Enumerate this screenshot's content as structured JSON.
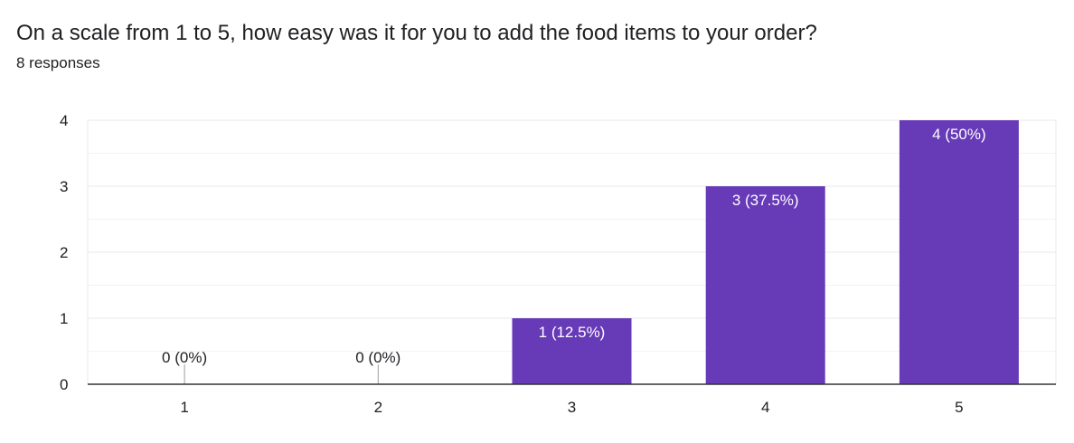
{
  "question": {
    "title": "On a scale from 1 to 5, how easy was it for you to add the food items to your order?",
    "response_count": "8 responses"
  },
  "colors": {
    "bar": "#673ab7",
    "grid": "#e8e8e8",
    "grid_minor": "#f3f3f3",
    "axis": "#333333",
    "text": "#202124"
  },
  "chart_data": {
    "type": "bar",
    "title": "",
    "xlabel": "",
    "ylabel": "",
    "categories": [
      "1",
      "2",
      "3",
      "4",
      "5"
    ],
    "values": [
      0,
      0,
      1,
      3,
      4
    ],
    "data_labels": [
      "0 (0%)",
      "0 (0%)",
      "1 (12.5%)",
      "3 (37.5%)",
      "4 (50%)"
    ],
    "ylim": [
      0,
      4
    ],
    "yticks": [
      "0",
      "1",
      "2",
      "3",
      "4"
    ],
    "grid": true
  }
}
